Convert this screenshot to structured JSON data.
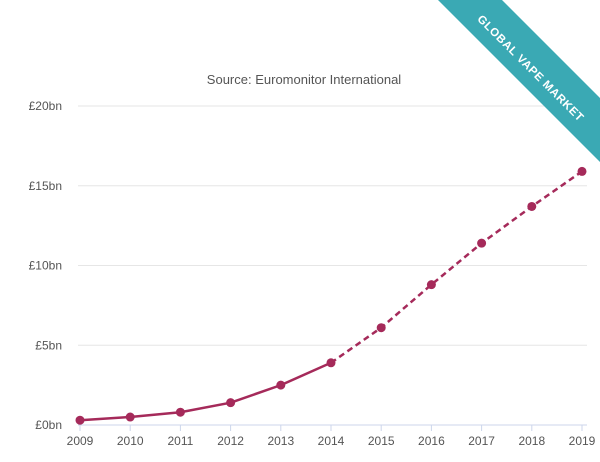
{
  "ribbon": {
    "label": "GLOBAL VAPE MARKET",
    "color": "#3aa9b4"
  },
  "chart_data": {
    "type": "line",
    "title": "",
    "subtitle": "Source: Euromonitor International",
    "xlabel": "",
    "ylabel": "",
    "x": [
      "2009",
      "2010",
      "2011",
      "2012",
      "2013",
      "2014",
      "2015",
      "2016",
      "2017",
      "2018",
      "2019"
    ],
    "series": [
      {
        "values": [
          0.3,
          0.5,
          0.8,
          1.4,
          2.5,
          3.9,
          6.1,
          8.8,
          11.4,
          13.7,
          15.9
        ],
        "actual_through": "2014",
        "forecast_from": "2014",
        "color": "#a52a5a"
      }
    ],
    "ylim": [
      0,
      20
    ],
    "yticks": [
      0,
      5,
      10,
      15,
      20
    ],
    "ytick_labels": [
      "£0bn",
      "£5bn",
      "£10bn",
      "£15bn",
      "£20bn"
    ],
    "grid": true,
    "legend": "none"
  }
}
